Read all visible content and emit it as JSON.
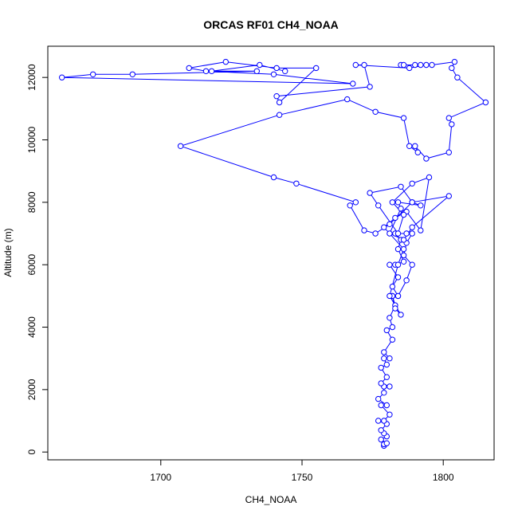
{
  "chart_data": {
    "type": "line",
    "title": "ORCAS RF01 CH4_NOAA",
    "xlabel": "CH4_NOAA",
    "ylabel": "Altitude (m)",
    "xlim": [
      1660,
      1818
    ],
    "ylim": [
      -250,
      13000
    ],
    "xticks": [
      1700,
      1750,
      1800
    ],
    "yticks": [
      0,
      2000,
      4000,
      6000,
      8000,
      10000,
      12000
    ],
    "grid": false,
    "legend": "none",
    "colors": {
      "series": "#0000ff",
      "axis": "#000000"
    },
    "series": [
      {
        "markers": "open-circle",
        "x": [
          1779,
          1779,
          1780,
          1778,
          1780,
          1779,
          1778,
          1780,
          1777,
          1779,
          1781,
          1778,
          1780,
          1777,
          1779,
          1779,
          1781,
          1778,
          1780,
          1778,
          1780,
          1779,
          1781,
          1779,
          1782,
          1780,
          1782,
          1781,
          1783,
          1782,
          1784,
          1782,
          1784,
          1781,
          1783,
          1786,
          1784,
          1785,
          1783,
          1787,
          1789,
          1787,
          1786,
          1789,
          1787,
          1784,
          1782,
          1783,
          1785,
          1781,
          1784,
          1786,
          1779,
          1783,
          1787,
          1792,
          1795,
          1789,
          1782,
          1786,
          1784,
          1777,
          1774,
          1785,
          1789,
          1792,
          1784,
          1785,
          1781,
          1786,
          1789,
          1802,
          1789,
          1781,
          1776,
          1772,
          1767,
          1769,
          1748,
          1740,
          1707,
          1742,
          1766,
          1776,
          1786,
          1788,
          1791,
          1790,
          1794,
          1802,
          1803,
          1802,
          1815,
          1805,
          1803,
          1804,
          1796,
          1792,
          1785,
          1786,
          1790,
          1794,
          1788,
          1769,
          1772,
          1774,
          1741,
          1742,
          1755,
          1741,
          1723,
          1710,
          1716,
          1740,
          1768,
          1665,
          1676,
          1690,
          1734,
          1718,
          1735,
          1744
        ],
        "y": [
          200,
          250,
          280,
          400,
          500,
          600,
          700,
          900,
          1000,
          1000,
          1200,
          1500,
          1500,
          1700,
          1900,
          2100,
          2100,
          2200,
          2400,
          2700,
          2800,
          3000,
          3000,
          3200,
          3600,
          3900,
          4000,
          4300,
          4700,
          5000,
          5000,
          5300,
          5600,
          6000,
          6000,
          6100,
          6500,
          6800,
          7000,
          7000,
          7000,
          6700,
          6300,
          6000,
          5500,
          5000,
          5000,
          4600,
          4400,
          5000,
          6000,
          6500,
          7200,
          7500,
          7700,
          7100,
          8800,
          8600,
          8000,
          7600,
          7000,
          7900,
          8300,
          8500,
          8000,
          7900,
          8000,
          7800,
          7000,
          6800,
          7200,
          8200,
          8000,
          7300,
          7000,
          7100,
          7900,
          8000,
          8600,
          8800,
          9800,
          10800,
          11300,
          10900,
          10700,
          9800,
          9600,
          9800,
          9400,
          9600,
          10500,
          10700,
          11200,
          12000,
          12300,
          12500,
          12400,
          12400,
          12400,
          12400,
          12400,
          12400,
          12300,
          12400,
          12400,
          11700,
          11400,
          11200,
          12300,
          12300,
          12500,
          12300,
          12200,
          12100,
          11800,
          12000,
          12100,
          12100,
          12200,
          12200,
          12400,
          12200
        ]
      }
    ]
  }
}
